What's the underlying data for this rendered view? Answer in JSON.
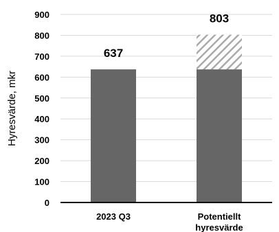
{
  "chart_data": {
    "type": "bar",
    "categories": [
      [
        "2023 Q3"
      ],
      [
        "Potentiellt",
        "hyresvärde"
      ]
    ],
    "series": [
      {
        "values": [
          637,
          637
        ]
      },
      {
        "values": [
          0,
          166
        ]
      }
    ],
    "data_labels": [
      "637",
      "803"
    ],
    "ylabel": "Hyresvärde, mkr",
    "ylim": [
      0,
      900
    ],
    "yticks": [
      0,
      100,
      200,
      300,
      400,
      500,
      600,
      700,
      800,
      900
    ],
    "grid": true,
    "legend": "none",
    "colors": {
      "bar": "#666666",
      "hatch": "#aaaaaa",
      "grid": "#d9d9d9",
      "axis": "#000000"
    }
  }
}
